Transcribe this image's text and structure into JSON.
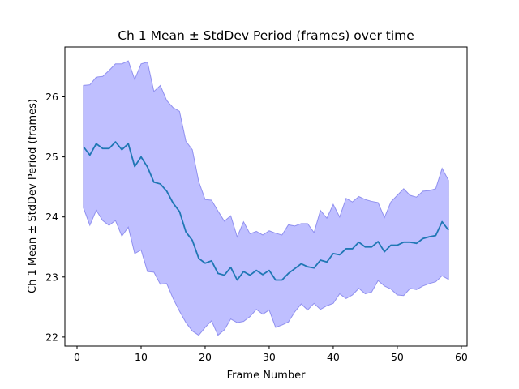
{
  "chart_data": {
    "type": "line",
    "title": "Ch 1 Mean ± StdDev Period (frames) over time",
    "xlabel": "Frame Number",
    "ylabel": "Ch 1 Mean ± StdDev Period (frames)",
    "xlim": [
      -1.9,
      60.9
    ],
    "ylim": [
      21.85,
      26.83
    ],
    "xticks": [
      0,
      10,
      20,
      30,
      40,
      50,
      60
    ],
    "yticks": [
      22,
      23,
      24,
      25,
      26
    ],
    "grid": false,
    "x": [
      1,
      2,
      3,
      4,
      5,
      6,
      7,
      8,
      9,
      10,
      11,
      12,
      13,
      14,
      15,
      16,
      17,
      18,
      19,
      20,
      21,
      22,
      23,
      24,
      25,
      26,
      27,
      28,
      29,
      30,
      31,
      32,
      33,
      34,
      35,
      36,
      37,
      38,
      39,
      40,
      41,
      42,
      43,
      44,
      45,
      46,
      47,
      48,
      49,
      50,
      51,
      52,
      53,
      54,
      55,
      56,
      57,
      58
    ],
    "series": [
      {
        "kind": "mean",
        "color": "#1f77b4",
        "values": [
          25.17,
          25.03,
          25.22,
          25.14,
          25.14,
          25.25,
          25.12,
          25.22,
          24.84,
          25.0,
          24.83,
          24.58,
          24.55,
          24.43,
          24.23,
          24.09,
          23.75,
          23.61,
          23.31,
          23.23,
          23.27,
          23.06,
          23.03,
          23.16,
          22.95,
          23.09,
          23.03,
          23.11,
          23.04,
          23.11,
          22.95,
          22.95,
          23.06,
          23.14,
          23.22,
          23.17,
          23.15,
          23.28,
          23.25,
          23.39,
          23.37,
          23.47,
          23.47,
          23.58,
          23.5,
          23.5,
          23.59,
          23.42,
          23.53,
          23.53,
          23.58,
          23.58,
          23.56,
          23.64,
          23.67,
          23.69,
          23.92,
          23.78
        ]
      },
      {
        "kind": "upper",
        "values": [
          26.19,
          26.2,
          26.33,
          26.34,
          26.44,
          26.55,
          26.55,
          26.6,
          26.29,
          26.55,
          26.58,
          26.09,
          26.19,
          25.94,
          25.82,
          25.76,
          25.26,
          25.12,
          24.59,
          24.29,
          24.28,
          24.1,
          23.93,
          24.02,
          23.67,
          23.92,
          23.72,
          23.76,
          23.7,
          23.77,
          23.73,
          23.7,
          23.87,
          23.85,
          23.89,
          23.89,
          23.74,
          24.11,
          23.98,
          24.21,
          24.0,
          24.31,
          24.25,
          24.34,
          24.29,
          24.26,
          24.24,
          23.99,
          24.25,
          24.36,
          24.47,
          24.36,
          24.33,
          24.43,
          24.44,
          24.47,
          24.81,
          24.61
        ]
      },
      {
        "kind": "lower",
        "values": [
          24.15,
          23.86,
          24.11,
          23.94,
          23.86,
          23.94,
          23.68,
          23.83,
          23.39,
          23.45,
          23.09,
          23.08,
          22.88,
          22.89,
          22.64,
          22.43,
          22.24,
          22.1,
          22.03,
          22.16,
          22.27,
          22.03,
          22.12,
          22.3,
          22.24,
          22.26,
          22.34,
          22.46,
          22.38,
          22.45,
          22.16,
          22.2,
          22.25,
          22.42,
          22.55,
          22.45,
          22.56,
          22.46,
          22.52,
          22.56,
          22.72,
          22.64,
          22.7,
          22.81,
          22.72,
          22.75,
          22.94,
          22.85,
          22.8,
          22.7,
          22.69,
          22.81,
          22.79,
          22.85,
          22.89,
          22.92,
          23.02,
          22.96
        ]
      }
    ],
    "band_color": "#8080ff",
    "band_edge_color": "#7070e8"
  }
}
